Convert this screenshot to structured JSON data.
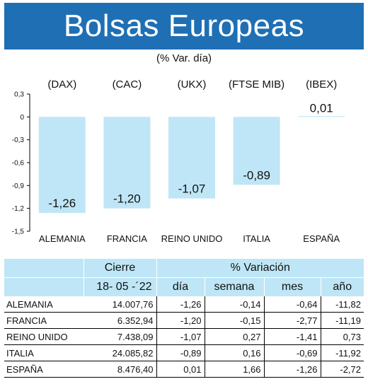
{
  "header": {
    "title": "Bolsas Europeas",
    "subtitle": "(% Var. día)"
  },
  "colors": {
    "title_bg": "#1f6fb4",
    "bar": "#bfe6f6",
    "table_header_bg": "#bfe6f6"
  },
  "chart_data": {
    "type": "bar",
    "categories": [
      "ALEMANIA",
      "FRANCIA",
      "REINO UNIDO",
      "ITALIA",
      "ESPAÑA"
    ],
    "index_labels": [
      "(DAX)",
      "(CAC)",
      "(UKX)",
      "(FTSE MIB)",
      "(IBEX)"
    ],
    "values": [
      -1.26,
      -1.2,
      -1.07,
      -0.89,
      0.01
    ],
    "value_labels": [
      "-1,26",
      "-1,20",
      "-1,07",
      "-0,89",
      "0,01"
    ],
    "ylim": [
      -1.5,
      0.3
    ],
    "yticks": [
      0.3,
      0,
      -0.3,
      -0.6,
      -0.9,
      -1.2,
      -1.5
    ],
    "ytick_labels": [
      "0,3",
      "0",
      "-0,3",
      "-0,6",
      "-0,9",
      "-1,2",
      "-1,5"
    ],
    "grid": false
  },
  "table": {
    "group_headers": [
      "Cierre",
      "% Variación"
    ],
    "date": "18- 05 -´22",
    "columns": [
      "día",
      "semana",
      "mes",
      "año"
    ],
    "rows": [
      {
        "name": "Alemania",
        "cierre": "14.007,76",
        "dia": "-1,26",
        "semana": "-0,14",
        "mes": "-0,64",
        "ano": "-11,82"
      },
      {
        "name": "Francia",
        "cierre": "6.352,94",
        "dia": "-1,20",
        "semana": "-0,15",
        "mes": "-2,77",
        "ano": "-11,19"
      },
      {
        "name": "Reino Unido",
        "cierre": "7.438,09",
        "dia": "-1,07",
        "semana": "0,27",
        "mes": "-1,41",
        "ano": "0,73"
      },
      {
        "name": "Italia",
        "cierre": "24.085,82",
        "dia": "-0,89",
        "semana": "0,16",
        "mes": "-0,69",
        "ano": "-11,92"
      },
      {
        "name": "España",
        "cierre": "8.476,40",
        "dia": "0,01",
        "semana": "1,66",
        "mes": "-1,26",
        "ano": "-2,72"
      }
    ]
  }
}
